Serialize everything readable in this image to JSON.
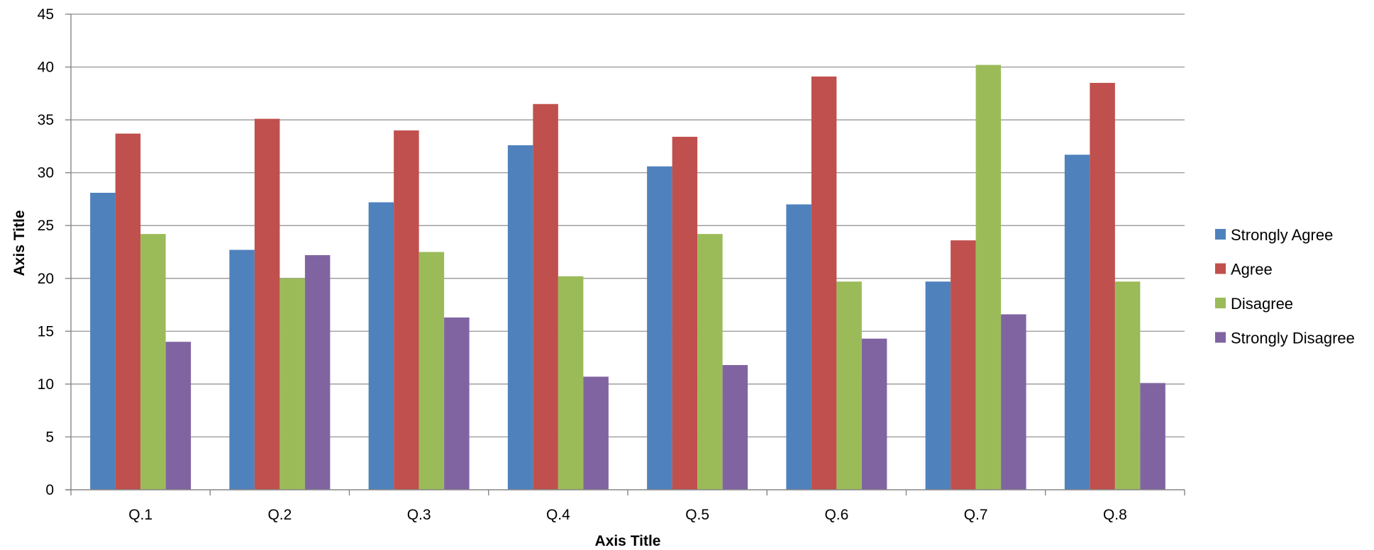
{
  "chart_data": {
    "type": "bar",
    "title": "",
    "xlabel": "Axis Title",
    "ylabel": "Axis Title",
    "ylim": [
      0,
      45
    ],
    "yticks": [
      0,
      5,
      10,
      15,
      20,
      25,
      30,
      35,
      40,
      45
    ],
    "grid": true,
    "legend_position": "right",
    "categories": [
      "Q.1",
      "Q.2",
      "Q.3",
      "Q.4",
      "Q.5",
      "Q.6",
      "Q.7",
      "Q.8"
    ],
    "series": [
      {
        "name": "Strongly Agree",
        "color": "#4F81BD",
        "values": [
          28.1,
          22.7,
          27.2,
          32.6,
          30.6,
          27.0,
          19.7,
          31.7
        ]
      },
      {
        "name": "Agree",
        "color": "#C0504D",
        "values": [
          33.7,
          35.1,
          34.0,
          36.5,
          33.4,
          39.1,
          23.6,
          38.5
        ]
      },
      {
        "name": "Disagree",
        "color": "#9BBB59",
        "values": [
          24.2,
          20.0,
          22.5,
          20.2,
          24.2,
          19.7,
          40.2,
          19.7
        ]
      },
      {
        "name": "Strongly Disagree",
        "color": "#8064A2",
        "values": [
          14.0,
          22.2,
          16.3,
          10.7,
          11.8,
          14.3,
          16.6,
          10.1
        ]
      }
    ]
  }
}
